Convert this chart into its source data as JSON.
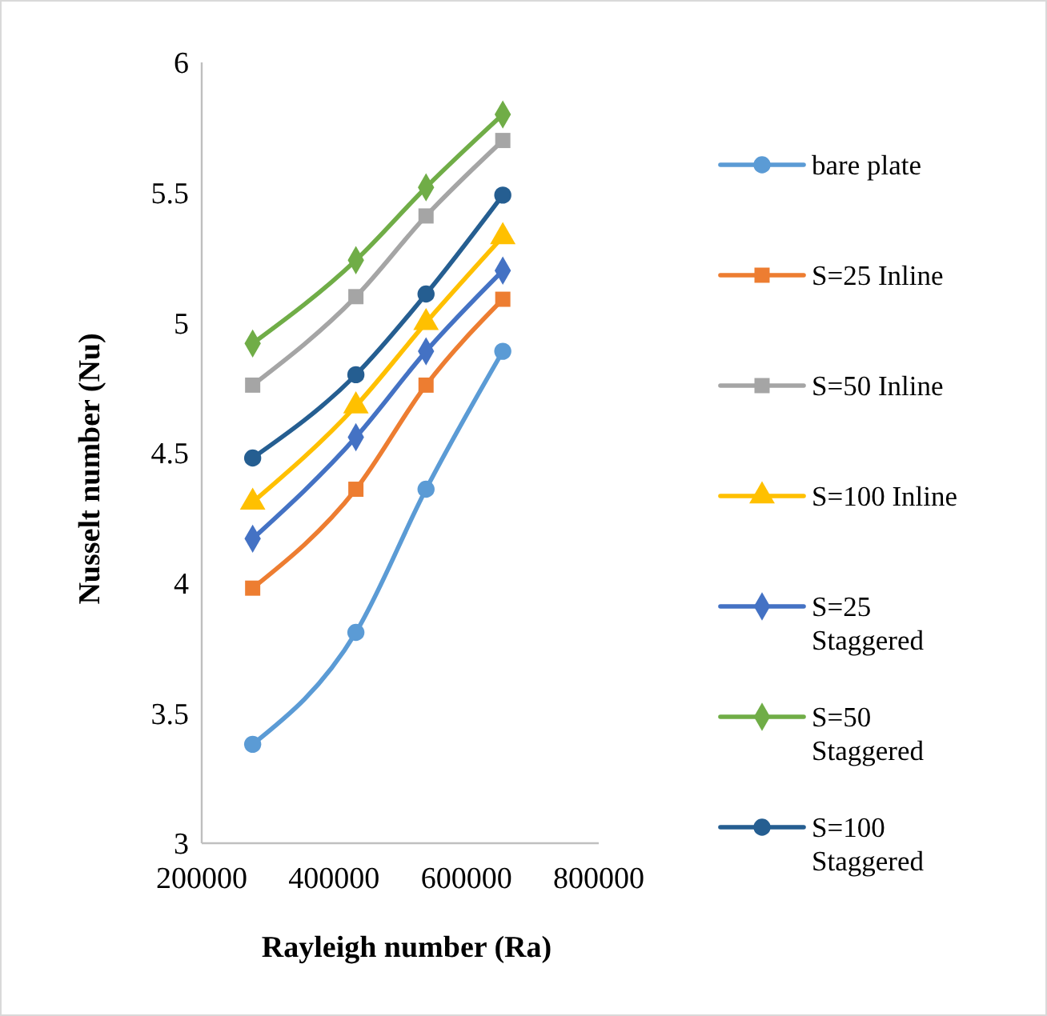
{
  "chart_data": {
    "type": "line",
    "xlabel": "Rayleigh number (Ra)",
    "ylabel": "Nusselt number (Nu)",
    "x": [
      277000,
      433000,
      539000,
      655000
    ],
    "xlim": [
      200000,
      800000
    ],
    "xticks": [
      200000,
      400000,
      600000,
      800000
    ],
    "ylim": [
      3,
      6
    ],
    "yticks": [
      3,
      3.5,
      4,
      4.5,
      5,
      5.5,
      6
    ],
    "grid": false,
    "legend": "right",
    "series": [
      {
        "name": "bare plate",
        "color": "#5b9bd5",
        "marker": "circle",
        "values": [
          3.38,
          3.81,
          4.36,
          4.89
        ]
      },
      {
        "name": "S=25 Inline",
        "color": "#ed7d31",
        "marker": "square",
        "values": [
          3.98,
          4.36,
          4.76,
          5.09
        ]
      },
      {
        "name": "S=50 Inline",
        "color": "#a5a5a5",
        "marker": "square",
        "values": [
          4.76,
          5.1,
          5.41,
          5.7
        ]
      },
      {
        "name": "S=100 Inline",
        "color": "#ffc000",
        "marker": "triangle",
        "values": [
          4.31,
          4.68,
          5.0,
          5.33
        ]
      },
      {
        "name": "S=25 Staggered",
        "color": "#4472c4",
        "marker": "diamond",
        "values": [
          4.17,
          4.56,
          4.89,
          5.2
        ]
      },
      {
        "name": "S=50 Staggered",
        "color": "#70ad47",
        "marker": "diamond",
        "values": [
          4.92,
          5.24,
          5.52,
          5.8
        ]
      },
      {
        "name": "S=100 Staggered",
        "color": "#255e91",
        "marker": "circle",
        "values": [
          4.48,
          4.8,
          5.11,
          5.49
        ]
      }
    ]
  }
}
